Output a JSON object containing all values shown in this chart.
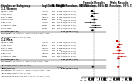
{
  "women_studies": [
    {
      "name": "FRISC II  1999",
      "logOR": -0.3285,
      "se": 0.22,
      "weight": 26.9,
      "or": 0.72,
      "ci_lo": 0.47,
      "ci_hi": 1.11
    },
    {
      "name": "ICTUS  2005",
      "logOR": 0.1484,
      "se": 0.33,
      "weight": 12.5,
      "or": 1.16,
      "ci_lo": 0.61,
      "ci_hi": 2.21
    },
    {
      "name": "RITA-3  2002",
      "logOR": -0.2877,
      "se": 0.21,
      "weight": 29.7,
      "or": 0.75,
      "ci_lo": 0.5,
      "ci_hi": 1.13
    },
    {
      "name": "TIMI 18  1999",
      "logOR": 0.0953,
      "se": 0.3,
      "weight": 15.4,
      "or": 1.1,
      "ci_lo": 0.61,
      "ci_hi": 1.99
    },
    {
      "name": "VINO  2002",
      "logOR": -0.7885,
      "se": 0.54,
      "weight": 4.7,
      "or": 0.45,
      "ci_lo": 0.16,
      "ci_hi": 1.3
    },
    {
      "name": "VANQWISH  1998",
      "logOR": 0.3001,
      "se": 0.46,
      "weight": 6.4,
      "or": 1.35,
      "ci_lo": 0.55,
      "ci_hi": 3.32
    },
    {
      "name": "MATE  1998",
      "logOR": 0.2151,
      "se": 0.57,
      "weight": 4.4,
      "or": 1.24,
      "ci_lo": 0.41,
      "ci_hi": 3.78
    }
  ],
  "women_subtotal": {
    "or": 0.78,
    "ci_lo": 0.54,
    "ci_hi": 1.12
  },
  "women_het": "Heterogeneity: Tau²=0.03; Chi²=14.96, df=6 (p=0.02); I²=60%",
  "women_test": "Test for overall effect: Z=1.32 (p=0.19)",
  "men_studies": [
    {
      "name": "FRISC II  1999",
      "logOR": -0.3285,
      "se": 0.17,
      "weight": 30.2,
      "or": 0.72,
      "ci_lo": 0.51,
      "ci_hi": 1.01
    },
    {
      "name": "ICTUS  2005",
      "logOR": 0.0677,
      "se": 0.24,
      "weight": 16.2,
      "or": 1.07,
      "ci_lo": 0.67,
      "ci_hi": 1.71
    },
    {
      "name": "RITA-3  2002",
      "logOR": -0.2231,
      "se": 0.18,
      "weight": 27.5,
      "or": 0.8,
      "ci_lo": 0.56,
      "ci_hi": 1.14
    },
    {
      "name": "TIMI 18  1999",
      "logOR": -0.0834,
      "se": 0.22,
      "weight": 18.2,
      "or": 0.92,
      "ci_lo": 0.6,
      "ci_hi": 1.41
    },
    {
      "name": "VINO  2002",
      "logOR": -0.2231,
      "se": 0.56,
      "weight": 4.5,
      "or": 0.8,
      "ci_lo": 0.27,
      "ci_hi": 2.38
    },
    {
      "name": "VANQWISH  1998",
      "logOR": 0.4055,
      "se": 0.41,
      "weight": 3.4,
      "or": 1.5,
      "ci_lo": 0.67,
      "ci_hi": 3.35
    }
  ],
  "men_subtotal": {
    "or": 0.88,
    "ci_lo": 0.64,
    "ci_hi": 1.2
  },
  "men_het": "Heterogeneity: Tau²=0.01; Chi²=8.25, df=5 (p=0.14); I²=39%",
  "men_test": "Test for overall effect: Z=0.82 (p=0.41)",
  "total": {
    "or": 0.84,
    "ci_lo": 0.65,
    "ci_hi": 1.09
  },
  "total_het": "Heterogeneity: Tau²=0.02; Chi²=23.35, df=12 (p=0.02); I²=49%",
  "total_test": "Test for overall effect: Z=1.31 (p=0.19)",
  "total_subgroup": "Test for subgroup differences: Chi²=0.26, df=1 (p=0.61), I²=0%",
  "xmin": 0.1,
  "xmax": 10.0,
  "bg_color": "#ffffff",
  "color_black": "#000000",
  "color_red": "#cc0000",
  "fs_header": 1.8,
  "fs_body": 1.5,
  "fs_small": 1.3
}
